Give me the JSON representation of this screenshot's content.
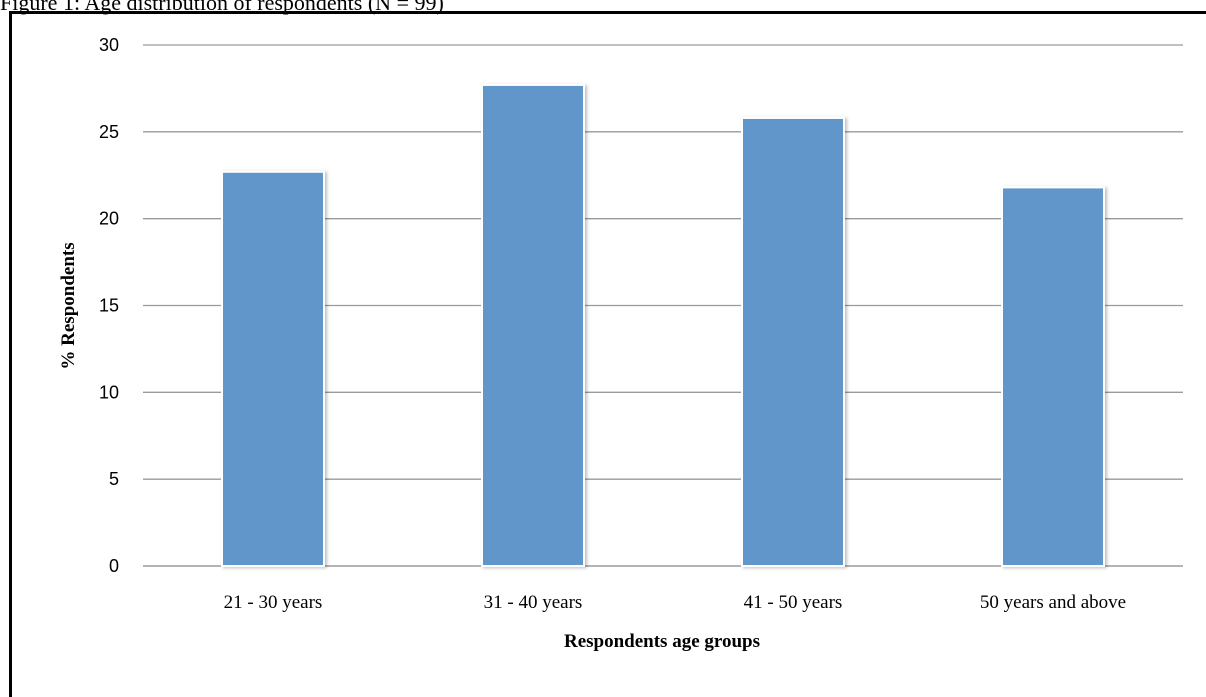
{
  "caption": "Figure 1: Age distribution of respondents (N = 99)",
  "chart_data": {
    "type": "bar",
    "title": "",
    "categories": [
      "21 - 30 years",
      "31 - 40 years",
      "41 - 50 years",
      "50 years and above"
    ],
    "values": [
      22.7,
      27.7,
      25.8,
      21.8
    ],
    "xlabel": "Respondents age groups",
    "ylabel": "% Respondents",
    "ylim": [
      0,
      30
    ],
    "yticks": [
      0,
      5,
      10,
      15,
      20,
      25,
      30
    ],
    "grid": true,
    "legend": "none",
    "bar_color": "#6096CA"
  }
}
